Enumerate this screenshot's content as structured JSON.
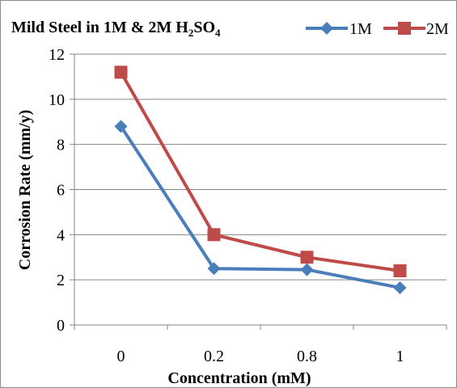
{
  "chart_data": {
    "type": "line",
    "title": "Mild Steel in 1M & 2M H2SO4",
    "title_parts": {
      "main": "Mild Steel in 1M & 2M H",
      "sub1": "2",
      "mid": "SO",
      "sub2": "4"
    },
    "xlabel": "Concentration (mM)",
    "ylabel": "Corrosion Rate (mm/y)",
    "categories": [
      "0",
      "0.2",
      "0.8",
      "1"
    ],
    "ylim": [
      0,
      12
    ],
    "yticks": [
      "0",
      "2",
      "4",
      "6",
      "8",
      "10",
      "12"
    ],
    "grid": true,
    "legend_position": "top-right",
    "series": [
      {
        "name": "1M",
        "values": [
          8.8,
          2.5,
          2.45,
          1.65
        ],
        "color": "#4a7ebb",
        "marker": "diamond"
      },
      {
        "name": "2M",
        "values": [
          11.2,
          4.0,
          3.0,
          2.4
        ],
        "color": "#be4b48",
        "marker": "square"
      }
    ]
  }
}
